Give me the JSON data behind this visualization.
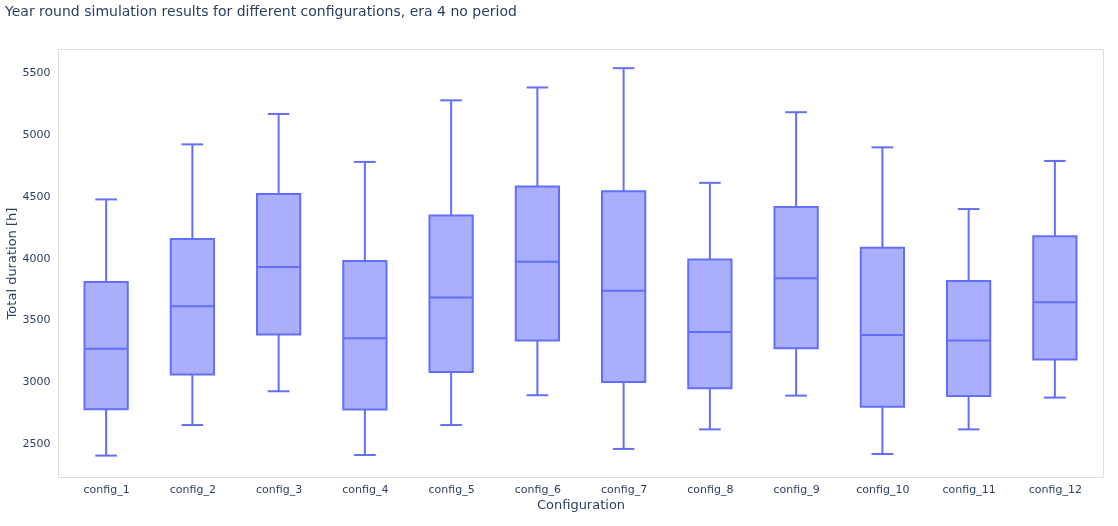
{
  "chart_data": {
    "type": "box",
    "title": "Year round simulation results for different configurations, era 4 no period",
    "xlabel": "Configuration",
    "ylabel": "Total duration [h]",
    "categories": [
      "config_1",
      "config_2",
      "config_3",
      "config_4",
      "config_5",
      "config_6",
      "config_7",
      "config_8",
      "config_9",
      "config_10",
      "config_11",
      "config_12"
    ],
    "color": "#636efa",
    "ylim": [
      2230,
      5690
    ],
    "yticks": [
      2500,
      3000,
      3500,
      4000,
      4500,
      5000,
      5500
    ],
    "grid": "y",
    "boxes": [
      {
        "low": 2403,
        "q1": 2778,
        "median": 3266,
        "q3": 3807,
        "high": 4474
      },
      {
        "low": 2650,
        "q1": 3059,
        "median": 3611,
        "q3": 4155,
        "high": 4919
      },
      {
        "low": 2923,
        "q1": 3381,
        "median": 3927,
        "q3": 4517,
        "high": 5165
      },
      {
        "low": 2408,
        "q1": 2776,
        "median": 3351,
        "q3": 3976,
        "high": 4777
      },
      {
        "low": 2650,
        "q1": 3078,
        "median": 3681,
        "q3": 4343,
        "high": 5275
      },
      {
        "low": 2891,
        "q1": 3333,
        "median": 3970,
        "q3": 4578,
        "high": 5379
      },
      {
        "low": 2457,
        "q1": 2998,
        "median": 3735,
        "q3": 4541,
        "high": 5535
      },
      {
        "low": 2615,
        "q1": 2947,
        "median": 3402,
        "q3": 3989,
        "high": 4608
      },
      {
        "low": 2888,
        "q1": 3271,
        "median": 3836,
        "q3": 4412,
        "high": 5179
      },
      {
        "low": 2416,
        "q1": 2797,
        "median": 3378,
        "q3": 4083,
        "high": 4895
      },
      {
        "low": 2615,
        "q1": 2885,
        "median": 3333,
        "q3": 3815,
        "high": 4396
      },
      {
        "low": 2872,
        "q1": 3180,
        "median": 3643,
        "q3": 4177,
        "high": 4785
      }
    ]
  }
}
